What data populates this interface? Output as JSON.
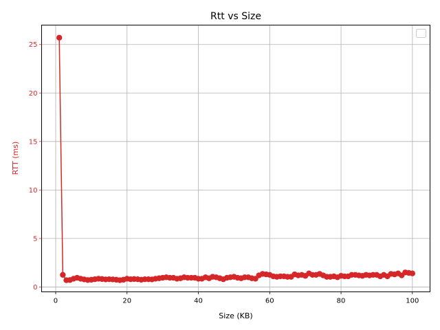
{
  "chart_data": {
    "type": "line",
    "title": "Rtt vs Size",
    "xlabel": "Size (KB)",
    "ylabel": "RTT (ms)",
    "xlim": [
      -3.95,
      104.95
    ],
    "ylim": [
      -0.5,
      27.0
    ],
    "xticks": [
      0,
      20,
      40,
      60,
      80,
      100
    ],
    "yticks": [
      0,
      5,
      10,
      15,
      20,
      25
    ],
    "grid": true,
    "legend": "top-right",
    "series_color": "#d62728",
    "series": [
      {
        "x": [
          1,
          2,
          3,
          4,
          5,
          6,
          7,
          8,
          9,
          10,
          11,
          12,
          13,
          14,
          15,
          16,
          17,
          18,
          19,
          20,
          21,
          22,
          23,
          24,
          25,
          26,
          27,
          28,
          29,
          30,
          31,
          32,
          33,
          34,
          35,
          36,
          37,
          38,
          39,
          40,
          41,
          42,
          43,
          44,
          45,
          46,
          47,
          48,
          49,
          50,
          51,
          52,
          53,
          54,
          55,
          56,
          57,
          58,
          59,
          60,
          61,
          62,
          63,
          64,
          65,
          66,
          67,
          68,
          69,
          70,
          71,
          72,
          73,
          74,
          75,
          76,
          77,
          78,
          79,
          80,
          81,
          82,
          83,
          84,
          85,
          86,
          87,
          88,
          89,
          90,
          91,
          92,
          93,
          94,
          95,
          96,
          97,
          98,
          99,
          100
        ],
        "values": [
          25.7,
          1.25,
          0.7,
          0.72,
          0.85,
          0.95,
          0.85,
          0.78,
          0.72,
          0.75,
          0.8,
          0.85,
          0.82,
          0.78,
          0.8,
          0.78,
          0.75,
          0.7,
          0.75,
          0.85,
          0.8,
          0.82,
          0.8,
          0.75,
          0.8,
          0.8,
          0.78,
          0.85,
          0.9,
          0.95,
          1.0,
          0.95,
          0.95,
          0.85,
          0.9,
          1.0,
          0.95,
          0.95,
          0.95,
          0.85,
          0.85,
          1.0,
          0.9,
          1.05,
          1.0,
          0.9,
          0.8,
          0.95,
          1.0,
          1.05,
          0.95,
          0.9,
          1.0,
          1.0,
          0.9,
          0.85,
          1.2,
          1.35,
          1.3,
          1.25,
          1.1,
          1.05,
          1.1,
          1.1,
          1.05,
          1.05,
          1.3,
          1.2,
          1.25,
          1.15,
          1.4,
          1.25,
          1.25,
          1.35,
          1.2,
          1.05,
          1.05,
          1.1,
          1.0,
          1.15,
          1.1,
          1.1,
          1.25,
          1.25,
          1.2,
          1.15,
          1.25,
          1.2,
          1.25,
          1.25,
          1.1,
          1.25,
          1.1,
          1.35,
          1.3,
          1.4,
          1.2,
          1.5,
          1.45,
          1.4
        ]
      }
    ]
  }
}
